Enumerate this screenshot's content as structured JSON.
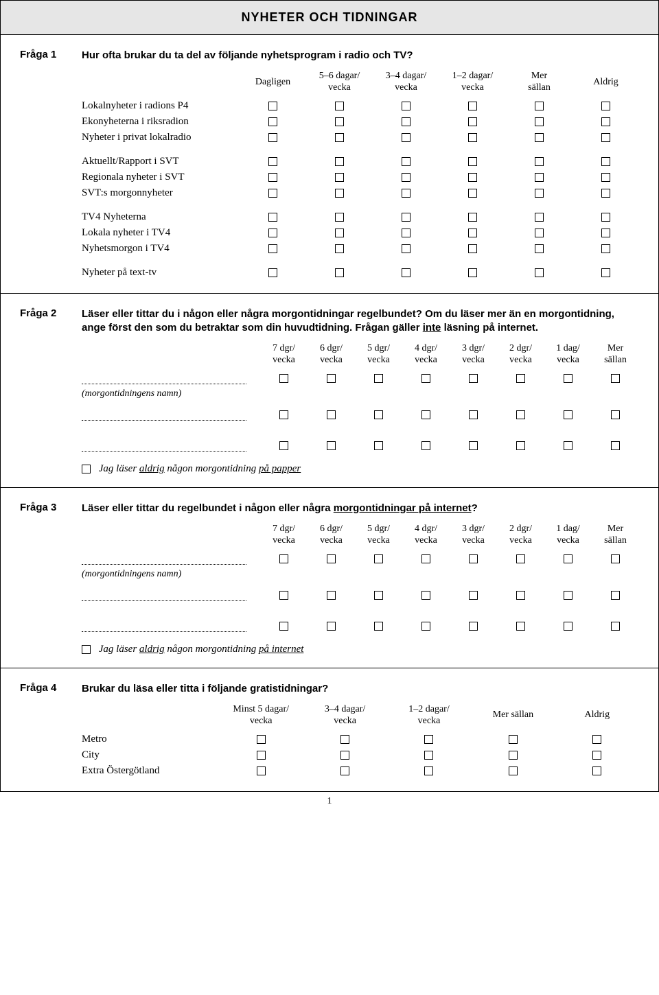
{
  "header": "NYHETER OCH TIDNINGAR",
  "page_number": "1",
  "q1": {
    "label": "Fråga 1",
    "text": "Hur ofta brukar du ta del av följande nyhetsprogram i radio och TV?",
    "cols": [
      "Dagligen",
      "5–6 dagar/\nvecka",
      "3–4 dagar/\nvecka",
      "1–2 dagar/\nvecka",
      "Mer\nsällan",
      "Aldrig"
    ],
    "groups": [
      [
        "Lokalnyheter i radions P4",
        "Ekonyheterna i riksradion",
        "Nyheter i privat lokalradio"
      ],
      [
        "Aktuellt/Rapport i SVT",
        "Regionala nyheter i SVT",
        "SVT:s morgonnyheter"
      ],
      [
        "TV4 Nyheterna",
        "Lokala nyheter i TV4",
        "Nyhetsmorgon i TV4"
      ],
      [
        "Nyheter på text-tv"
      ]
    ]
  },
  "q2": {
    "label": "Fråga 2",
    "text_pre": "Läser eller tittar du i någon eller några morgontidningar regelbundet? Om du läser mer än en morgontidning, ange först den som du betraktar som din huvudtidning. Frågan gäller ",
    "text_u": "inte",
    "text_post": " läsning på internet.",
    "cols": [
      "7 dgr/\nvecka",
      "6 dgr/\nvecka",
      "5 dgr/\nvecka",
      "4 dgr/\nvecka",
      "3 dgr/\nvecka",
      "2 dgr/\nvecka",
      "1 dag/\nvecka",
      "Mer\nsällan"
    ],
    "hint": "(morgontidningens namn)",
    "never_pre": "Jag läser ",
    "never_u1": "aldrig",
    "never_mid": " någon morgontidning ",
    "never_u2": "på papper"
  },
  "q3": {
    "label": "Fråga 3",
    "text_pre": "Läser eller tittar du regelbundet i någon eller några ",
    "text_u": "morgontidningar på internet",
    "text_post": "?",
    "cols": [
      "7 dgr/\nvecka",
      "6 dgr/\nvecka",
      "5 dgr/\nvecka",
      "4 dgr/\nvecka",
      "3 dgr/\nvecka",
      "2 dgr/\nvecka",
      "1 dag/\nvecka",
      "Mer\nsällan"
    ],
    "hint": "(morgontidningens namn)",
    "never_pre": "Jag läser ",
    "never_u1": "aldrig",
    "never_mid": " någon morgontidning ",
    "never_u2": "på internet"
  },
  "q4": {
    "label": "Fråga 4",
    "text": "Brukar du läsa eller titta i följande gratistidningar?",
    "cols": [
      "Minst 5 dagar/\nvecka",
      "3–4 dagar/\nvecka",
      "1–2 dagar/\nvecka",
      "Mer sällan",
      "Aldrig"
    ],
    "rows": [
      "Metro",
      "City",
      "Extra Östergötland"
    ]
  }
}
